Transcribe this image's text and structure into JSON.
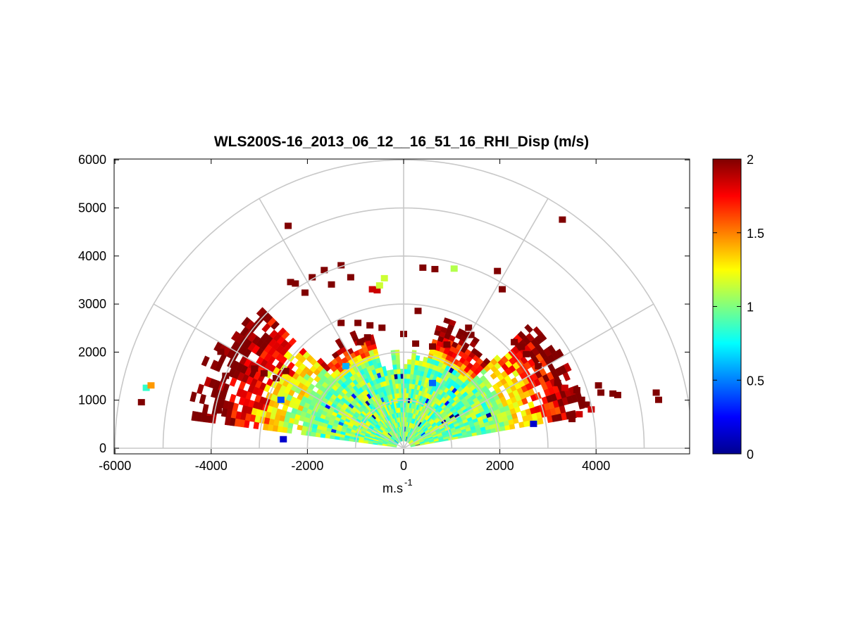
{
  "chart_data": {
    "type": "heatmap",
    "subtype": "polar-rhi-sector",
    "title": "WLS200S-16_2013_06_12__16_51_16_RHI_Disp (m/s)",
    "xlabel": "m.s",
    "xlabel_superscript": "-1",
    "ylabel": "",
    "xlim": [
      -6000,
      6000
    ],
    "ylim": [
      -100,
      6000
    ],
    "x_ticks": [
      "-6000",
      "-4000",
      "-2000",
      "0",
      "2000",
      "4000"
    ],
    "x_tick_values": [
      -6000,
      -4000,
      -2000,
      0,
      2000,
      4000
    ],
    "y_ticks": [
      "0",
      "1000",
      "2000",
      "3000",
      "4000",
      "5000",
      "6000"
    ],
    "y_tick_values": [
      0,
      1000,
      2000,
      3000,
      4000,
      5000,
      6000
    ],
    "polar_grid": {
      "ring_radii": [
        1000,
        2000,
        3000,
        4000,
        5000,
        6000
      ],
      "spoke_angles_deg": [
        0,
        30,
        60,
        90,
        120,
        150,
        180
      ]
    },
    "colorbar": {
      "colormap": "jet",
      "min": 0,
      "max": 2,
      "ticks": [
        "0",
        "0.5",
        "1",
        "1.5",
        "2"
      ],
      "tick_values": [
        0,
        0.5,
        1,
        1.5,
        2
      ]
    },
    "dense_field": {
      "description_range_m": [
        150,
        1950
      ],
      "typical_value": 1.0,
      "sectors": [
        {
          "angle_from_deg": 10,
          "angle_to_deg": 45,
          "max_range_m": 3950,
          "outer_values": [
            1.05,
            1.3,
            1.7,
            2.0
          ]
        },
        {
          "angle_from_deg": 45,
          "angle_to_deg": 75,
          "max_range_m": 2850,
          "outer_values": [
            1.3,
            1.7,
            2.0,
            2.0
          ]
        },
        {
          "angle_from_deg": 75,
          "angle_to_deg": 105,
          "max_range_m": 2050,
          "outer_values": [
            1.1,
            1.2,
            1.6,
            2.0
          ]
        },
        {
          "angle_from_deg": 105,
          "angle_to_deg": 135,
          "max_range_m": 2750,
          "outer_values": [
            1.2,
            1.6,
            1.9,
            2.0
          ]
        },
        {
          "angle_from_deg": 135,
          "angle_to_deg": 172,
          "max_range_m": 4500,
          "outer_values": [
            1.05,
            1.3,
            1.75,
            2.0
          ]
        }
      ]
    },
    "scatter_cells": [
      {
        "x": -5350,
        "y": 1250,
        "v": 0.85
      },
      {
        "x": -5250,
        "y": 1300,
        "v": 1.45
      },
      {
        "x": -5450,
        "y": 950,
        "v": 2.0
      },
      {
        "x": -3850,
        "y": 780,
        "v": 2.0
      },
      {
        "x": -4050,
        "y": 600,
        "v": 2.0
      },
      {
        "x": -3700,
        "y": 1500,
        "v": 2.0
      },
      {
        "x": -3100,
        "y": 1650,
        "v": 2.0
      },
      {
        "x": -2900,
        "y": 1550,
        "v": 2.0
      },
      {
        "x": -2650,
        "y": 1450,
        "v": 2.0
      },
      {
        "x": -2450,
        "y": 1600,
        "v": 2.0
      },
      {
        "x": -3800,
        "y": 2000,
        "v": 2.0
      },
      {
        "x": -2350,
        "y": 3450,
        "v": 2.0
      },
      {
        "x": -2250,
        "y": 3420,
        "v": 2.0
      },
      {
        "x": -2050,
        "y": 3230,
        "v": 2.0
      },
      {
        "x": -1900,
        "y": 3550,
        "v": 2.0
      },
      {
        "x": -1650,
        "y": 3700,
        "v": 2.0
      },
      {
        "x": -1300,
        "y": 3800,
        "v": 2.0
      },
      {
        "x": -1500,
        "y": 3400,
        "v": 2.0
      },
      {
        "x": -1100,
        "y": 3550,
        "v": 2.0
      },
      {
        "x": -650,
        "y": 3300,
        "v": 1.85
      },
      {
        "x": -550,
        "y": 3280,
        "v": 1.85
      },
      {
        "x": -400,
        "y": 3530,
        "v": 1.15
      },
      {
        "x": -500,
        "y": 3380,
        "v": 1.15
      },
      {
        "x": -2400,
        "y": 4620,
        "v": 2.0
      },
      {
        "x": 3300,
        "y": 4750,
        "v": 2.0
      },
      {
        "x": 400,
        "y": 3750,
        "v": 2.0
      },
      {
        "x": 650,
        "y": 3720,
        "v": 2.0
      },
      {
        "x": 1050,
        "y": 3730,
        "v": 1.1
      },
      {
        "x": 1950,
        "y": 3680,
        "v": 2.0
      },
      {
        "x": 2050,
        "y": 3300,
        "v": 2.0
      },
      {
        "x": 300,
        "y": 2850,
        "v": 2.0
      },
      {
        "x": -1300,
        "y": 2600,
        "v": 2.0
      },
      {
        "x": -950,
        "y": 2600,
        "v": 2.0
      },
      {
        "x": -700,
        "y": 2550,
        "v": 2.0
      },
      {
        "x": -450,
        "y": 2500,
        "v": 2.0
      },
      {
        "x": 0,
        "y": 2370,
        "v": 2.0
      },
      {
        "x": 1350,
        "y": 2500,
        "v": 2.0
      },
      {
        "x": 1400,
        "y": 2350,
        "v": 2.0
      },
      {
        "x": -900,
        "y": 2200,
        "v": 2.0
      },
      {
        "x": -750,
        "y": 2300,
        "v": 2.0
      },
      {
        "x": 250,
        "y": 2170,
        "v": 2.0
      },
      {
        "x": 600,
        "y": 2110,
        "v": 2.0
      },
      {
        "x": 900,
        "y": 2150,
        "v": 2.0
      },
      {
        "x": 2300,
        "y": 2200,
        "v": 2.0
      },
      {
        "x": 2450,
        "y": 2100,
        "v": 2.0
      },
      {
        "x": 2550,
        "y": 1950,
        "v": 2.0
      },
      {
        "x": 2800,
        "y": 1700,
        "v": 2.0
      },
      {
        "x": 3200,
        "y": 1350,
        "v": 2.0
      },
      {
        "x": 3350,
        "y": 1250,
        "v": 1.85
      },
      {
        "x": 3600,
        "y": 1200,
        "v": 2.0
      },
      {
        "x": 3700,
        "y": 1000,
        "v": 2.0
      },
      {
        "x": 3800,
        "y": 900,
        "v": 2.0
      },
      {
        "x": 3900,
        "y": 800,
        "v": 1.85
      },
      {
        "x": 4050,
        "y": 1300,
        "v": 2.0
      },
      {
        "x": 4100,
        "y": 1150,
        "v": 2.0
      },
      {
        "x": 4350,
        "y": 1130,
        "v": 2.0
      },
      {
        "x": 4450,
        "y": 1100,
        "v": 2.0
      },
      {
        "x": 5250,
        "y": 1150,
        "v": 2.0
      },
      {
        "x": 5300,
        "y": 1000,
        "v": 2.0
      },
      {
        "x": 3500,
        "y": 600,
        "v": 2.0
      },
      {
        "x": 3650,
        "y": 700,
        "v": 1.85
      },
      {
        "x": 2700,
        "y": 500,
        "v": 0.15
      },
      {
        "x": -2550,
        "y": 1000,
        "v": 0.4
      },
      {
        "x": -2500,
        "y": 180,
        "v": 0.15
      },
      {
        "x": -1200,
        "y": 1700,
        "v": 0.6
      },
      {
        "x": 600,
        "y": 1350,
        "v": 0.45
      }
    ]
  }
}
